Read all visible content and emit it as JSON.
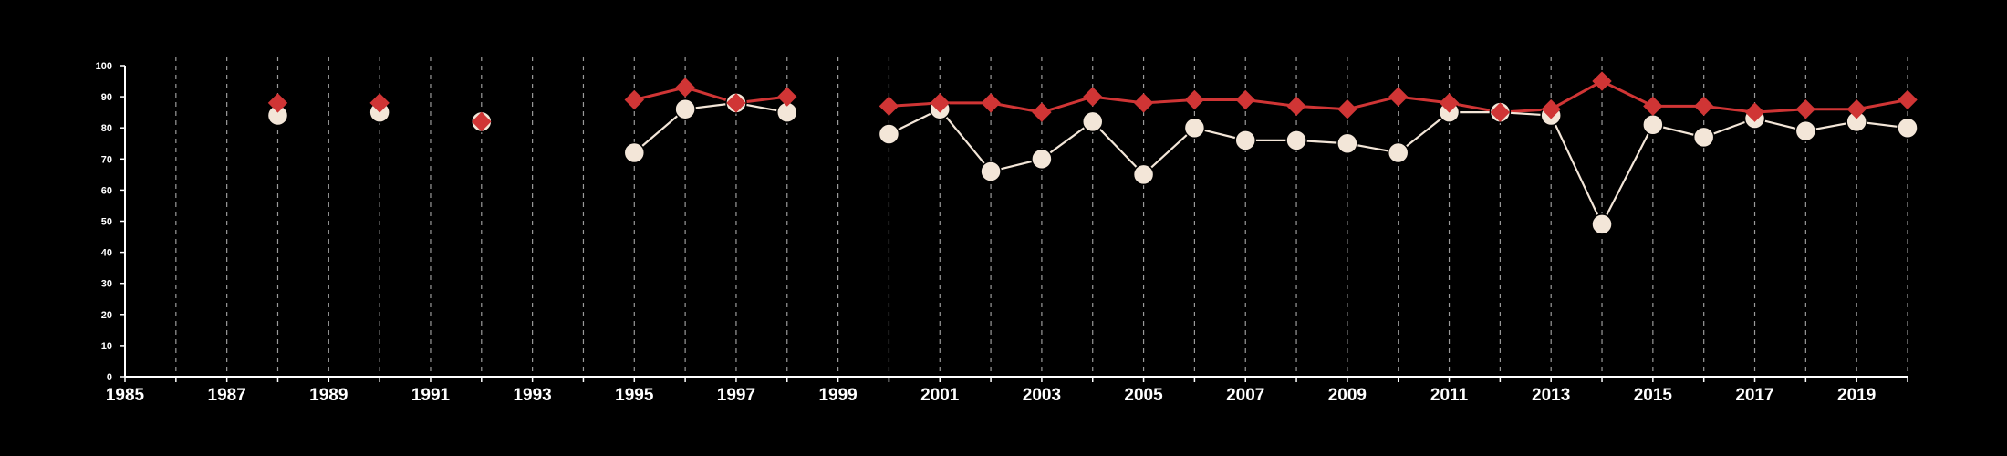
{
  "chart_data": {
    "type": "line",
    "title": "",
    "xlabel": "",
    "ylabel": "",
    "xlim": [
      1985,
      2020
    ],
    "ylim": [
      0,
      100
    ],
    "x_ticks": [
      1985,
      1987,
      1989,
      1991,
      1993,
      1995,
      1997,
      1999,
      2001,
      2003,
      2005,
      2007,
      2009,
      2011,
      2013,
      2015,
      2017,
      2019
    ],
    "y_ticks": [
      0,
      10,
      20,
      30,
      40,
      50,
      60,
      70,
      80,
      90,
      100
    ],
    "vertical_dashed_gridlines": true,
    "background": "#000000",
    "series": [
      {
        "marker": "diamond",
        "color": "#d03535",
        "points": [
          {
            "x": 1988,
            "y": 88
          },
          {
            "x": 1990,
            "y": 88
          },
          {
            "x": 1992,
            "y": 82
          },
          {
            "x": 1995,
            "y": 89
          },
          {
            "x": 1996,
            "y": 93
          },
          {
            "x": 1997,
            "y": 88
          },
          {
            "x": 1998,
            "y": 90
          },
          {
            "x": 2000,
            "y": 87
          },
          {
            "x": 2001,
            "y": 88
          },
          {
            "x": 2002,
            "y": 88
          },
          {
            "x": 2003,
            "y": 85
          },
          {
            "x": 2004,
            "y": 90
          },
          {
            "x": 2005,
            "y": 88
          },
          {
            "x": 2006,
            "y": 89
          },
          {
            "x": 2007,
            "y": 89
          },
          {
            "x": 2008,
            "y": 87
          },
          {
            "x": 2009,
            "y": 86
          },
          {
            "x": 2010,
            "y": 90
          },
          {
            "x": 2011,
            "y": 88
          },
          {
            "x": 2012,
            "y": 85
          },
          {
            "x": 2013,
            "y": 86
          },
          {
            "x": 2014,
            "y": 95
          },
          {
            "x": 2015,
            "y": 87
          },
          {
            "x": 2016,
            "y": 87
          },
          {
            "x": 2017,
            "y": 85
          },
          {
            "x": 2018,
            "y": 86
          },
          {
            "x": 2019,
            "y": 86
          },
          {
            "x": 2020,
            "y": 89
          }
        ]
      },
      {
        "marker": "circle",
        "color": "#f3e6d8",
        "points": [
          {
            "x": 1988,
            "y": 84
          },
          {
            "x": 1990,
            "y": 85
          },
          {
            "x": 1992,
            "y": 82
          },
          {
            "x": 1995,
            "y": 72
          },
          {
            "x": 1996,
            "y": 86
          },
          {
            "x": 1997,
            "y": 88
          },
          {
            "x": 1998,
            "y": 85
          },
          {
            "x": 2000,
            "y": 78
          },
          {
            "x": 2001,
            "y": 86
          },
          {
            "x": 2002,
            "y": 66
          },
          {
            "x": 2003,
            "y": 70
          },
          {
            "x": 2004,
            "y": 82
          },
          {
            "x": 2005,
            "y": 65
          },
          {
            "x": 2006,
            "y": 80
          },
          {
            "x": 2007,
            "y": 76
          },
          {
            "x": 2008,
            "y": 76
          },
          {
            "x": 2009,
            "y": 75
          },
          {
            "x": 2010,
            "y": 72
          },
          {
            "x": 2011,
            "y": 85
          },
          {
            "x": 2012,
            "y": 85
          },
          {
            "x": 2013,
            "y": 84
          },
          {
            "x": 2014,
            "y": 49
          },
          {
            "x": 2015,
            "y": 81
          },
          {
            "x": 2016,
            "y": 77
          },
          {
            "x": 2017,
            "y": 83
          },
          {
            "x": 2018,
            "y": 79
          },
          {
            "x": 2019,
            "y": 82
          },
          {
            "x": 2020,
            "y": 80
          }
        ]
      }
    ]
  }
}
